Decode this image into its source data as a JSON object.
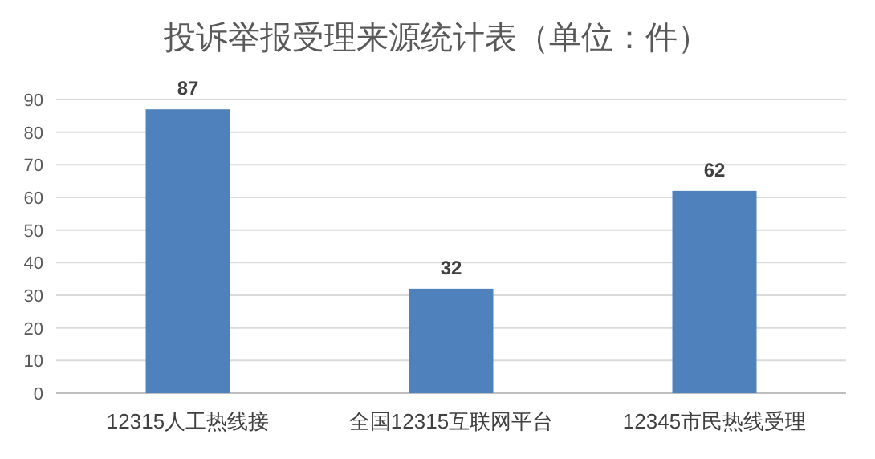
{
  "chart_data": {
    "type": "bar",
    "title": "投诉举报受理来源统计表（单位：件）",
    "categories": [
      "12315人工热线接",
      "全国12315互联网平台",
      "12345市民热线受理"
    ],
    "values": [
      87,
      32,
      62
    ],
    "color": "#4f81bd",
    "ylim": [
      0,
      90
    ],
    "yticks": [
      0,
      10,
      20,
      30,
      40,
      50,
      60,
      70,
      80,
      90
    ],
    "grid": "y",
    "data_labels": true
  }
}
